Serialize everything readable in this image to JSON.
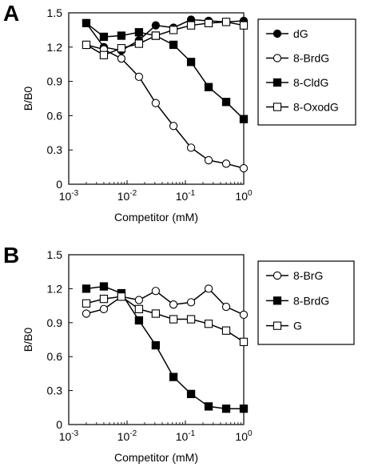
{
  "chart_data": [
    {
      "panel": "A",
      "type": "line",
      "xscale": "log",
      "xlim": [
        0.001,
        1
      ],
      "ylim": [
        0,
        1.5
      ],
      "xlabel": "Competitor (mM)",
      "ylabel": "B/B0",
      "yticks": [
        "0",
        "0.3",
        "0.6",
        "0.9",
        "1.2",
        "1.5"
      ],
      "xticks": [
        {
          "base": "10",
          "exp": "-3"
        },
        {
          "base": "10",
          "exp": "-2"
        },
        {
          "base": "10",
          "exp": "-1"
        },
        {
          "base": "10",
          "exp": "0"
        }
      ],
      "legend_position": "right",
      "x": [
        0.002,
        0.004,
        0.008,
        0.016,
        0.031,
        0.0625,
        0.125,
        0.25,
        0.5,
        1.0
      ],
      "series": [
        {
          "name": "dG",
          "marker": "filled-circle",
          "values": [
            1.41,
            1.2,
            1.17,
            1.26,
            1.39,
            1.37,
            1.44,
            1.43,
            1.42,
            1.43
          ]
        },
        {
          "name": "8-BrdG",
          "marker": "open-circle",
          "values": [
            1.22,
            1.18,
            1.1,
            0.94,
            0.71,
            0.51,
            0.32,
            0.21,
            0.18,
            0.14
          ]
        },
        {
          "name": "8-CldG",
          "marker": "filled-square",
          "values": [
            1.41,
            1.29,
            1.3,
            1.33,
            1.3,
            1.22,
            1.07,
            0.85,
            0.72,
            0.57
          ]
        },
        {
          "name": "8-OxodG",
          "marker": "open-square",
          "values": [
            1.22,
            1.13,
            1.19,
            1.23,
            1.3,
            1.35,
            1.39,
            1.41,
            1.42,
            1.39
          ]
        }
      ]
    },
    {
      "panel": "B",
      "type": "line",
      "xscale": "log",
      "xlim": [
        0.001,
        1
      ],
      "ylim": [
        0,
        1.5
      ],
      "xlabel": "Competitor (mM)",
      "ylabel": "B/B0",
      "yticks": [
        "0",
        "0.3",
        "0.6",
        "0.9",
        "1.2",
        "1.5"
      ],
      "xticks": [
        {
          "base": "10",
          "exp": "-3"
        },
        {
          "base": "10",
          "exp": "-2"
        },
        {
          "base": "10",
          "exp": "-1"
        },
        {
          "base": "10",
          "exp": "0"
        }
      ],
      "legend_position": "right",
      "x": [
        0.002,
        0.004,
        0.008,
        0.016,
        0.031,
        0.0625,
        0.125,
        0.25,
        0.5,
        1.0
      ],
      "series": [
        {
          "name": "8-BrG",
          "marker": "open-circle",
          "values": [
            0.98,
            1.02,
            1.13,
            1.1,
            1.18,
            1.06,
            1.08,
            1.2,
            1.04,
            0.97
          ]
        },
        {
          "name": "8-BrdG",
          "marker": "filled-square",
          "values": [
            1.2,
            1.22,
            1.16,
            0.92,
            0.7,
            0.42,
            0.27,
            0.16,
            0.14,
            0.14
          ]
        },
        {
          "name": "G",
          "marker": "open-square",
          "values": [
            1.07,
            1.11,
            1.13,
            1.02,
            0.98,
            0.93,
            0.93,
            0.89,
            0.83,
            0.73
          ]
        }
      ]
    }
  ]
}
